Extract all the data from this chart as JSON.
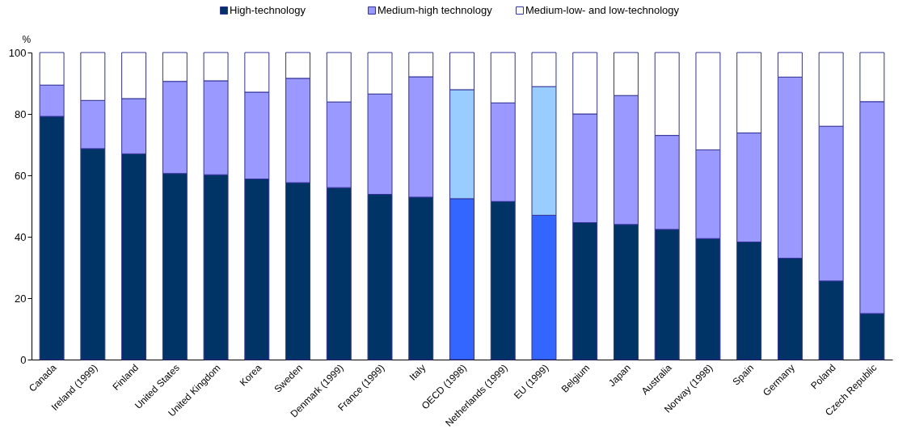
{
  "chart_data": {
    "type": "bar",
    "stacked": true,
    "ylabel": "%",
    "legend": "top",
    "grid": false,
    "categories": [
      "Canada",
      "Ireland (1999)",
      "Finland",
      "United States",
      "United Kingdom",
      "Korea",
      "Sweden",
      "Denmark (1999)",
      "France (1999)",
      "Italy",
      "OECD (1998)",
      "Netherlands (1999)",
      "EU (1999)",
      "Belgium",
      "Japan",
      "Australia",
      "Norway (1998)",
      "Spain",
      "Germany",
      "Poland",
      "Czech Republic"
    ],
    "ylim": [
      0,
      100
    ],
    "yticks": [
      0,
      20,
      40,
      60,
      80,
      100
    ],
    "series": [
      {
        "name": "High-technology",
        "color": "#003366",
        "colors": [
          "#003366",
          "#003366",
          "#003366",
          "#003366",
          "#003366",
          "#003366",
          "#003366",
          "#003366",
          "#003366",
          "#003366",
          "#3366ff",
          "#003366",
          "#3366ff",
          "#003366",
          "#003366",
          "#003366",
          "#003366",
          "#003366",
          "#003366",
          "#003366",
          "#003366"
        ],
        "values": [
          79.2,
          68.7,
          67,
          60.6,
          60.2,
          58.8,
          57.6,
          56,
          53.8,
          52.9,
          52.4,
          51.5,
          47,
          44.6,
          44,
          42.4,
          39.4,
          38.3,
          33,
          25.6,
          15
        ]
      },
      {
        "name": "Medium-high technology",
        "color": "#9999ff",
        "colors": [
          "#9999ff",
          "#9999ff",
          "#9999ff",
          "#9999ff",
          "#9999ff",
          "#9999ff",
          "#9999ff",
          "#9999ff",
          "#9999ff",
          "#9999ff",
          "#99ccff",
          "#9999ff",
          "#99ccff",
          "#9999ff",
          "#9999ff",
          "#9999ff",
          "#9999ff",
          "#9999ff",
          "#9999ff",
          "#9999ff",
          "#9999ff"
        ],
        "values": [
          10.2,
          15.7,
          18,
          30,
          30.6,
          28.3,
          34,
          27.9,
          32.7,
          39.2,
          35.5,
          32.1,
          41.9,
          35.4,
          42,
          30.6,
          28.9,
          35.5,
          59,
          50.4,
          69
        ]
      },
      {
        "name": "Medium-low- and low-technology",
        "color": "#ffffff",
        "values": [
          10.6,
          15.6,
          15,
          9.4,
          9.2,
          12.9,
          8.4,
          16.1,
          13.5,
          7.9,
          12.1,
          16.4,
          11.1,
          20,
          14,
          27,
          31.7,
          26.2,
          8,
          24,
          16
        ]
      }
    ]
  }
}
